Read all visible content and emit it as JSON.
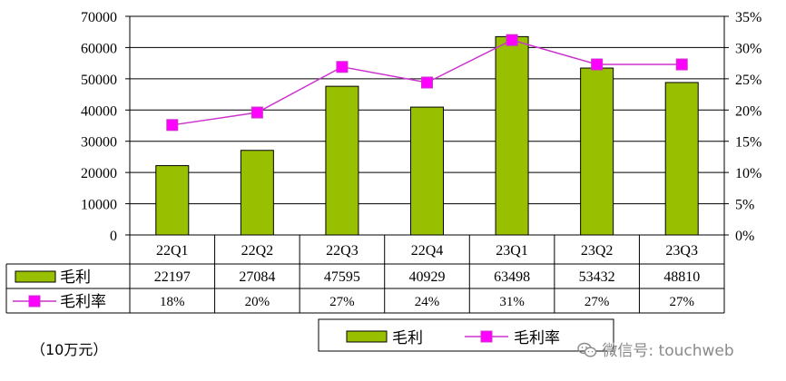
{
  "chart_data": {
    "type": "bar",
    "categories": [
      "22Q1",
      "22Q2",
      "22Q3",
      "22Q4",
      "23Q1",
      "23Q2",
      "23Q3"
    ],
    "series": [
      {
        "name": "毛利",
        "type": "bar",
        "axis": "left",
        "values": [
          22197,
          27084,
          47595,
          40929,
          63498,
          53432,
          48810
        ],
        "labels": [
          "22197",
          "27084",
          "47595",
          "40929",
          "63498",
          "53432",
          "48810"
        ]
      },
      {
        "name": "毛利率",
        "type": "line",
        "axis": "right",
        "values": [
          17.6,
          19.6,
          26.9,
          24.4,
          31.2,
          27.3,
          27.3
        ],
        "labels": [
          "18%",
          "20%",
          "27%",
          "24%",
          "31%",
          "27%",
          "27%"
        ]
      }
    ],
    "ylim_left": [
      0,
      70000
    ],
    "ylim_right": [
      0,
      35
    ],
    "yticks_left": [
      "0",
      "10000",
      "20000",
      "30000",
      "40000",
      "50000",
      "60000",
      "70000"
    ],
    "yticks_right": [
      "0%",
      "5%",
      "10%",
      "15%",
      "20%",
      "25%",
      "30%",
      "35%"
    ],
    "grid": true,
    "legend_position": "bottom"
  },
  "colors": {
    "bar": "#99c000",
    "bar_edge": "#000000",
    "line": "#cc33cc",
    "marker": "#ff00ff"
  },
  "unit_label": "（10万元）",
  "watermark": "微信号: touchweb",
  "watermark_icon": "wechat-icon"
}
